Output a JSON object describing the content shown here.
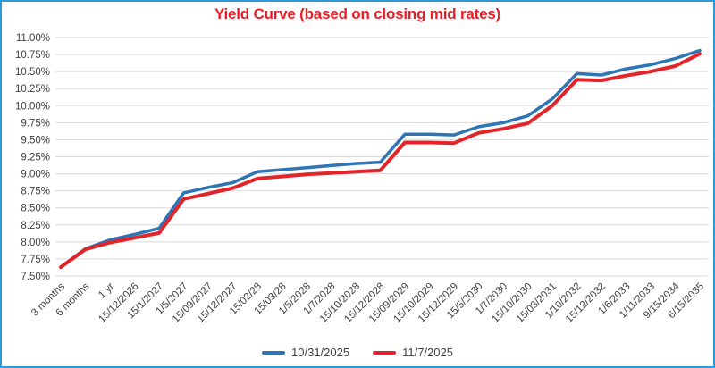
{
  "chart_data": {
    "type": "line",
    "title": "Yield Curve (based on closing mid rates)",
    "title_color": "#ec1c24",
    "border_color": "#2f9ad3",
    "gridline_color": "#d9d9d9",
    "axis_text_color": "#404040",
    "ylim": [
      7.5,
      11.0
    ],
    "y_tick_step": 0.25,
    "y_tick_format": "percent_2dp",
    "grid": "horizontal",
    "legend_position": "bottom-center",
    "categories": [
      "3 months",
      "6 months",
      "1 yr",
      "15/12/2026",
      "15/1/2027",
      "1/5/2027",
      "15/09/2027",
      "15/12/2027",
      "15/02/28",
      "15/03/28",
      "1/5/2028",
      "1/7/2028",
      "15/10/2028",
      "15/12/2028",
      "15/09/2029",
      "15/10/2029",
      "15/12/2029",
      "15/5/2030",
      "1/7/2030",
      "15/10/2030",
      "15/03/2031",
      "1/10/2032",
      "15/12/2032",
      "1/6/2033",
      "1/11/2033",
      "9/15/2034",
      "6/15/2035"
    ],
    "series": [
      {
        "name": "10/31/2025",
        "color": "#2e75b6",
        "stroke_width": 3.5,
        "values": [
          7.63,
          7.9,
          8.03,
          8.11,
          8.2,
          8.72,
          8.8,
          8.87,
          9.03,
          9.06,
          9.09,
          9.12,
          9.15,
          9.17,
          9.58,
          9.58,
          9.57,
          9.69,
          9.75,
          9.85,
          10.1,
          10.47,
          10.45,
          10.54,
          10.6,
          10.69,
          10.81
        ]
      },
      {
        "name": "11/7/2025",
        "color": "#e2252b",
        "stroke_width": 4,
        "values": [
          7.63,
          7.89,
          7.99,
          8.06,
          8.13,
          8.63,
          8.71,
          8.79,
          8.93,
          8.96,
          8.99,
          9.01,
          9.03,
          9.05,
          9.46,
          9.46,
          9.45,
          9.6,
          9.66,
          9.74,
          10.0,
          10.38,
          10.37,
          10.44,
          10.5,
          10.58,
          10.76
        ]
      }
    ]
  }
}
